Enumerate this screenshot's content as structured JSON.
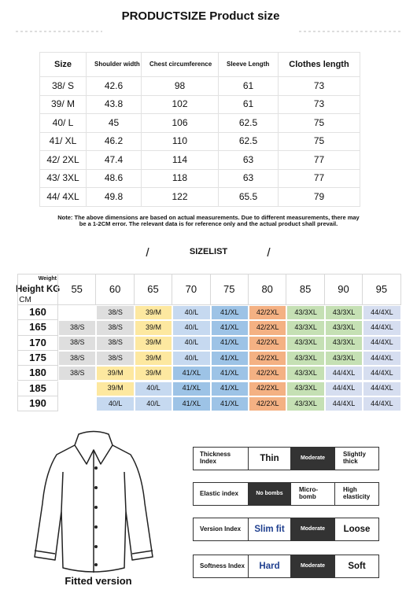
{
  "title": "PRODUCTSIZE Product size",
  "size_table": {
    "header": [
      "Size",
      "Shoulder width",
      "Chest circumference",
      "Sleeve Length",
      "Clothes length"
    ],
    "rows": [
      [
        "38/ S",
        42.6,
        98,
        61,
        73
      ],
      [
        "39/ M",
        43.8,
        102,
        61,
        73
      ],
      [
        "40/ L",
        45,
        106,
        62.5,
        75
      ],
      [
        "41/ XL",
        46.2,
        110,
        62.5,
        75
      ],
      [
        "42/ 2XL",
        47.4,
        114,
        63,
        77
      ],
      [
        "43/ 3XL",
        48.6,
        118,
        63,
        77
      ],
      [
        "44/ 4XL",
        49.8,
        122,
        65.5,
        79
      ]
    ]
  },
  "note": "Note: The above dimensions are based on actual measurements. Due to different measurements, there may be a 1-2CM error. The relevant data is for reference only and the actual product shall prevail.",
  "size_list": {
    "title": "SIZELIST",
    "corner": {
      "weight": "Weight",
      "height": "Height KG",
      "unit": "CM"
    },
    "weights": [
      55,
      60,
      65,
      70,
      75,
      80,
      85,
      90,
      95
    ],
    "rows": [
      {
        "height": 160,
        "sizes": [
          null,
          "38/S",
          "39/M",
          "40/L",
          "41/XL",
          "42/2XL",
          "43/3XL",
          "43/3XL",
          "44/4XL"
        ]
      },
      {
        "height": 165,
        "sizes": [
          "38/S",
          "38/S",
          "39/M",
          "40/L",
          "41/XL",
          "42/2XL",
          "43/3XL",
          "43/3XL",
          "44/4XL"
        ]
      },
      {
        "height": 170,
        "sizes": [
          "38/S",
          "38/S",
          "39/M",
          "40/L",
          "41/XL",
          "42/2XL",
          "43/3XL",
          "43/3XL",
          "44/4XL"
        ]
      },
      {
        "height": 175,
        "sizes": [
          "38/S",
          "38/S",
          "39/M",
          "40/L",
          "41/XL",
          "42/2XL",
          "43/3XL",
          "43/3XL",
          "44/4XL"
        ]
      },
      {
        "height": 180,
        "sizes": [
          "38/S",
          "39/M",
          "39/M",
          "41/XL",
          "41/XL",
          "42/2XL",
          "43/3XL",
          "44/4XL",
          "44/4XL"
        ]
      },
      {
        "height": 185,
        "sizes": [
          null,
          "39/M",
          "40/L",
          "41/XL",
          "41/XL",
          "42/2XL",
          "43/3XL",
          "44/4XL",
          "44/4XL"
        ]
      },
      {
        "height": 190,
        "sizes": [
          null,
          "40/L",
          "40/L",
          "41/XL",
          "41/XL",
          "42/2XL",
          "43/3XL",
          "44/4XL",
          "44/4XL"
        ]
      }
    ]
  },
  "fit": {
    "caption": "Fitted version"
  },
  "attributes": [
    {
      "label": "Thickness Index",
      "options": [
        "Thin",
        "Moderate",
        "Slightly thick"
      ],
      "selected": 1
    },
    {
      "label": "Elastic index",
      "options": [
        "No bombs",
        "Micro-bomb",
        "High elasticity"
      ],
      "selected": 0
    },
    {
      "label": "Version Index",
      "options": [
        "Slim fit",
        "Moderate",
        "Loose"
      ],
      "selected": 1
    },
    {
      "label": "Softness Index",
      "options": [
        "Hard",
        "Moderate",
        "Soft"
      ],
      "selected": 1
    }
  ]
}
